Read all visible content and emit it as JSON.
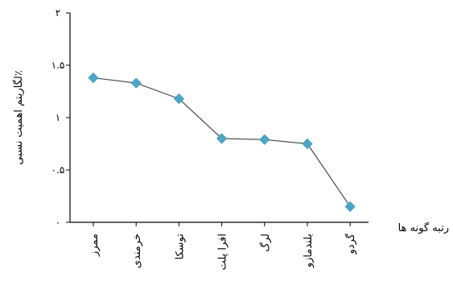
{
  "chart_data": {
    "type": "line",
    "categories": [
      "ممرز",
      "خرمندی",
      "توسکا",
      "افرا پلت",
      "لرگ",
      "بلندمازو",
      "گردو"
    ],
    "values": [
      1.38,
      1.33,
      1.18,
      0.8,
      0.79,
      0.75,
      0.15
    ],
    "y_ticks": [
      {
        "value": 0,
        "label": "۰"
      },
      {
        "value": 0.5,
        "label": "۰.۵"
      },
      {
        "value": 1,
        "label": "۱"
      },
      {
        "value": 1.5,
        "label": "۱.۵"
      },
      {
        "value": 2,
        "label": "۲"
      }
    ],
    "ylim": [
      0,
      2
    ],
    "ylabel": "لگاریتم اهمیت نسبی٪",
    "xlabel": "رتبه گونه ها",
    "grid": false,
    "colors": {
      "marker": "#4aa7c7",
      "line": "#4a4a4a",
      "axis": "#000000"
    }
  }
}
